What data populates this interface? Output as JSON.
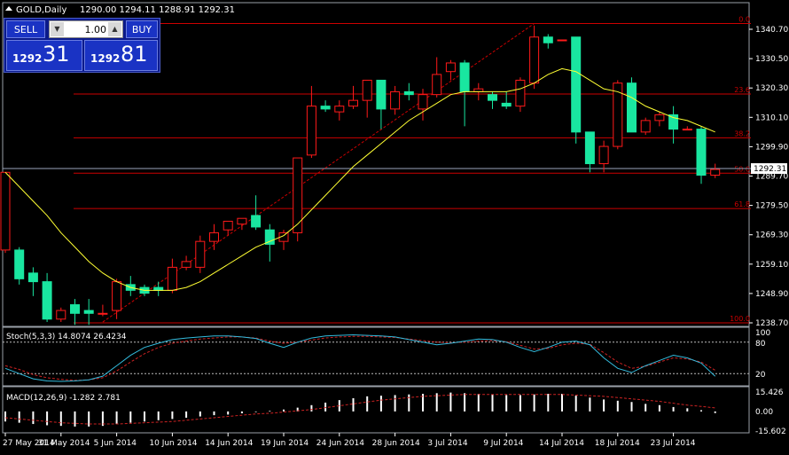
{
  "header": {
    "symbol": "GOLD,Daily",
    "ohlc": "1290.00 1294.11 1288.91 1292.31"
  },
  "trade_panel": {
    "sell_label": "SELL",
    "buy_label": "BUY",
    "volume": "1.00",
    "bid_prefix": "1292",
    "bid_big": "31",
    "ask_prefix": "1292",
    "ask_big": "81"
  },
  "colors": {
    "background": "#000000",
    "bull_candle": "#000000",
    "bull_border": "#ff1a1a",
    "bear_candle": "#19e6a0",
    "moving_average": "#ffff33",
    "fibonacci": "#cc0000",
    "trendline": "#cc0000",
    "stoch_main": "#33bbdd",
    "stoch_signal": "#cc2222",
    "macd_hist": "#ffffff",
    "macd_signal": "#cc2222",
    "axis_text": "#ffffff",
    "bid_line": "#9aa3bb"
  },
  "chart_data": {
    "type": "candlestick",
    "price_axis_labels": [
      "1340.70",
      "1330.50",
      "1320.30",
      "1310.10",
      "1299.90",
      "1289.70",
      "1279.50",
      "1269.30",
      "1259.10",
      "1248.90",
      "1238.70"
    ],
    "current_price_label": "1292.31",
    "date_labels": [
      "27 May 2014",
      "31 May 2014",
      "5 Jun 2014",
      "10 Jun 2014",
      "14 Jun 2014",
      "19 Jun 2014",
      "24 Jun 2014",
      "28 Jun 2014",
      "3 Jul 2014",
      "9 Jul 2014",
      "14 Jul 2014",
      "18 Jul 2014",
      "23 Jul 2014"
    ],
    "candles": [
      {
        "o": 1264,
        "h": 1291,
        "c": 1291,
        "l": 1263
      },
      {
        "o": 1264,
        "h": 1265,
        "c": 1254,
        "l": 1252
      },
      {
        "o": 1256,
        "h": 1258,
        "c": 1253,
        "l": 1248
      },
      {
        "o": 1253,
        "h": 1256,
        "c": 1240,
        "l": 1239
      },
      {
        "o": 1240,
        "h": 1244,
        "c": 1243,
        "l": 1239
      },
      {
        "o": 1245,
        "h": 1247,
        "c": 1242,
        "l": 1238
      },
      {
        "o": 1243,
        "h": 1247,
        "c": 1242,
        "l": 1238
      },
      {
        "o": 1242,
        "h": 1245,
        "c": 1242,
        "l": 1241
      },
      {
        "o": 1243,
        "h": 1254,
        "c": 1253,
        "l": 1240
      },
      {
        "o": 1252,
        "h": 1255,
        "c": 1250,
        "l": 1248
      },
      {
        "o": 1251,
        "h": 1252,
        "c": 1249,
        "l": 1248
      },
      {
        "o": 1251,
        "h": 1253,
        "c": 1250,
        "l": 1248
      },
      {
        "o": 1250,
        "h": 1261,
        "c": 1258,
        "l": 1249
      },
      {
        "o": 1258,
        "h": 1262,
        "c": 1260,
        "l": 1257
      },
      {
        "o": 1258,
        "h": 1269,
        "c": 1267,
        "l": 1256
      },
      {
        "o": 1267,
        "h": 1273,
        "c": 1270,
        "l": 1264
      },
      {
        "o": 1271,
        "h": 1274,
        "c": 1274,
        "l": 1269
      },
      {
        "o": 1273,
        "h": 1275,
        "c": 1275,
        "l": 1271
      },
      {
        "o": 1276,
        "h": 1283,
        "c": 1272,
        "l": 1271
      },
      {
        "o": 1271,
        "h": 1273,
        "c": 1266,
        "l": 1260
      },
      {
        "o": 1267,
        "h": 1271,
        "c": 1270,
        "l": 1264
      },
      {
        "o": 1270,
        "h": 1296,
        "c": 1296,
        "l": 1267
      },
      {
        "o": 1297,
        "h": 1321,
        "c": 1314,
        "l": 1296
      },
      {
        "o": 1314,
        "h": 1316,
        "c": 1313,
        "l": 1312
      },
      {
        "o": 1312,
        "h": 1316,
        "c": 1314,
        "l": 1309
      },
      {
        "o": 1314,
        "h": 1321,
        "c": 1316,
        "l": 1313
      },
      {
        "o": 1316,
        "h": 1323,
        "c": 1323,
        "l": 1310
      },
      {
        "o": 1323,
        "h": 1323,
        "c": 1313,
        "l": 1306
      },
      {
        "o": 1313,
        "h": 1321,
        "c": 1319,
        "l": 1311
      },
      {
        "o": 1319,
        "h": 1322,
        "c": 1318,
        "l": 1316
      },
      {
        "o": 1313,
        "h": 1320,
        "c": 1318,
        "l": 1309
      },
      {
        "o": 1318,
        "h": 1331,
        "c": 1325,
        "l": 1317
      },
      {
        "o": 1326,
        "h": 1330,
        "c": 1329,
        "l": 1323
      },
      {
        "o": 1329,
        "h": 1330,
        "c": 1319,
        "l": 1307
      },
      {
        "o": 1319,
        "h": 1322,
        "c": 1320,
        "l": 1316
      },
      {
        "o": 1318,
        "h": 1319,
        "c": 1316,
        "l": 1313
      },
      {
        "o": 1315,
        "h": 1319,
        "c": 1314,
        "l": 1313
      },
      {
        "o": 1314,
        "h": 1324,
        "c": 1323,
        "l": 1312
      },
      {
        "o": 1322,
        "h": 1342,
        "c": 1338,
        "l": 1320
      },
      {
        "o": 1338,
        "h": 1339,
        "c": 1336,
        "l": 1334
      },
      {
        "o": 1337,
        "h": 1337,
        "c": 1337,
        "l": 1337
      },
      {
        "o": 1338,
        "h": 1338,
        "c": 1305,
        "l": 1301
      },
      {
        "o": 1305,
        "h": 1305,
        "c": 1294,
        "l": 1291
      },
      {
        "o": 1294,
        "h": 1302,
        "c": 1300,
        "l": 1291
      },
      {
        "o": 1300,
        "h": 1323,
        "c": 1322,
        "l": 1299
      },
      {
        "o": 1322,
        "h": 1324,
        "c": 1305,
        "l": 1305
      },
      {
        "o": 1305,
        "h": 1310,
        "c": 1309,
        "l": 1304
      },
      {
        "o": 1309,
        "h": 1312,
        "c": 1311,
        "l": 1307
      },
      {
        "o": 1311,
        "h": 1314,
        "c": 1306,
        "l": 1301
      },
      {
        "o": 1306,
        "h": 1307,
        "c": 1306,
        "l": 1306
      },
      {
        "o": 1306,
        "h": 1307,
        "c": 1290,
        "l": 1287
      },
      {
        "o": 1290,
        "h": 1294,
        "c": 1292,
        "l": 1289
      }
    ],
    "moving_average": [
      1291,
      1286,
      1281,
      1276,
      1270,
      1265,
      1260,
      1256,
      1253,
      1251,
      1250,
      1250,
      1250,
      1251,
      1253,
      1256,
      1259,
      1262,
      1265,
      1267,
      1269,
      1273,
      1278,
      1283,
      1288,
      1293,
      1297,
      1301,
      1305,
      1309,
      1312,
      1315,
      1318,
      1319,
      1319,
      1319,
      1319,
      1320,
      1322,
      1325,
      1327,
      1326,
      1323,
      1320,
      1319,
      1317,
      1314,
      1312,
      1310,
      1309,
      1307,
      1305
    ],
    "bid_line": 1292.31,
    "fibonacci": {
      "high": 1342.7,
      "low": 1238.7,
      "levels": [
        {
          "label": "0.0",
          "price": 1342.7
        },
        {
          "label": "23.6",
          "price": 1318.2
        },
        {
          "label": "38.2",
          "price": 1303.0
        },
        {
          "label": "50.0",
          "price": 1290.7
        },
        {
          "label": "61.8",
          "price": 1278.4
        },
        {
          "label": "100.0",
          "price": 1238.7
        }
      ]
    },
    "trendline": {
      "from_index": 7,
      "from_price": 1239.0,
      "to_index": 38,
      "to_price": 1342.7
    },
    "stochastic": {
      "label": "Stoch(5,3,3) 14.8074 26.4234",
      "levels": [
        {
          "label": "100",
          "value": 100
        },
        {
          "label": "80",
          "value": 80
        },
        {
          "label": "20",
          "value": 20
        }
      ],
      "main": [
        30,
        20,
        10,
        6,
        5,
        6,
        8,
        15,
        35,
        55,
        70,
        78,
        85,
        88,
        90,
        92,
        92,
        90,
        87,
        78,
        70,
        80,
        88,
        92,
        93,
        94,
        93,
        92,
        90,
        85,
        80,
        75,
        78,
        82,
        86,
        85,
        80,
        70,
        62,
        70,
        80,
        82,
        75,
        50,
        30,
        22,
        35,
        45,
        55,
        50,
        40,
        14.8
      ],
      "signal": [
        35,
        28,
        18,
        12,
        9,
        7,
        8,
        12,
        25,
        42,
        58,
        70,
        78,
        82,
        86,
        88,
        90,
        90,
        88,
        82,
        78,
        80,
        84,
        88,
        90,
        91,
        91,
        90,
        89,
        86,
        83,
        80,
        79,
        80,
        82,
        83,
        81,
        74,
        67,
        68,
        75,
        78,
        76,
        60,
        42,
        30,
        34,
        42,
        50,
        48,
        42,
        26.4
      ]
    },
    "macd": {
      "label": "MACD(12,26,9) -1.282 2.781",
      "axis_labels": [
        "15.426",
        "0.00",
        "-15.602"
      ],
      "histogram": [
        -8,
        -9,
        -10,
        -11,
        -11.5,
        -12,
        -12,
        -11.5,
        -10,
        -9,
        -8,
        -7,
        -6,
        -5,
        -4,
        -3,
        -2.5,
        -1.5,
        -0.5,
        0.5,
        1.5,
        3,
        5,
        7,
        9,
        10.5,
        12,
        12.5,
        13,
        13.5,
        14,
        14.5,
        15,
        14.5,
        14,
        13.5,
        13,
        13,
        13.5,
        14,
        14,
        12.5,
        11,
        9.5,
        8.5,
        7.5,
        6,
        5,
        3.5,
        2.5,
        1,
        -1.3
      ],
      "signal": [
        -5,
        -6,
        -7,
        -8,
        -9,
        -9.5,
        -10,
        -10,
        -10,
        -9.5,
        -9,
        -8.5,
        -8,
        -7,
        -6,
        -5,
        -4,
        -3,
        -2,
        -1.5,
        -0.5,
        0.5,
        1.5,
        3,
        4.5,
        6,
        7.5,
        9,
        10,
        11,
        12,
        12.5,
        13,
        13.5,
        13.5,
        13.5,
        13.5,
        13.5,
        13.5,
        13.5,
        13.5,
        13,
        12.5,
        12,
        11,
        10,
        9,
        8,
        6.5,
        5,
        4,
        2.8
      ],
      "range": [
        -15.602,
        15.426
      ]
    }
  }
}
